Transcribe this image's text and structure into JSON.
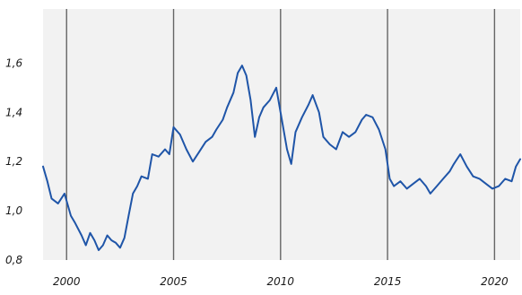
{
  "chart_data": {
    "type": "line",
    "title": "",
    "xlabel": "",
    "ylabel": "",
    "grid": "vertical lines at year ticks",
    "xlim": [
      1998.9,
      2021.2
    ],
    "ylim": [
      0.8,
      1.82
    ],
    "x_ticks": [
      2000,
      2005,
      2010,
      2015,
      2020
    ],
    "x_tick_labels": [
      "2000",
      "2005",
      "2010",
      "2015",
      "2020"
    ],
    "y_ticks": [
      0.8,
      1.0,
      1.2,
      1.4,
      1.6
    ],
    "y_tick_labels": [
      "0,8",
      "1,0",
      "1,2",
      "1,4",
      "1,6"
    ],
    "colors": {
      "plot_background": "#f2f2f2",
      "grid": "#666666",
      "line": "#1f55a8"
    },
    "series": [
      {
        "x": [
          1998.9,
          1999.1,
          1999.3,
          1999.6,
          1999.9,
          2000.2,
          2000.4,
          2000.7,
          2000.9,
          2001.1,
          2001.3,
          2001.5,
          2001.7,
          2001.9,
          2002.1,
          2002.3,
          2002.5,
          2002.7,
          2002.9,
          2003.1,
          2003.3,
          2003.5,
          2003.8,
          2004.0,
          2004.3,
          2004.6,
          2004.8,
          2005.0,
          2005.3,
          2005.6,
          2005.9,
          2006.2,
          2006.5,
          2006.8,
          2007.0,
          2007.3,
          2007.5,
          2007.8,
          2008.0,
          2008.2,
          2008.4,
          2008.6,
          2008.8,
          2009.0,
          2009.2,
          2009.5,
          2009.8,
          2010.0,
          2010.3,
          2010.5,
          2010.7,
          2011.0,
          2011.3,
          2011.5,
          2011.8,
          2012.0,
          2012.3,
          2012.6,
          2012.9,
          2013.2,
          2013.5,
          2013.8,
          2014.0,
          2014.3,
          2014.6,
          2014.9,
          2015.1,
          2015.3,
          2015.6,
          2015.9,
          2016.2,
          2016.5,
          2016.8,
          2017.0,
          2017.3,
          2017.6,
          2017.9,
          2018.1,
          2018.4,
          2018.7,
          2019.0,
          2019.3,
          2019.6,
          2019.9,
          2020.2,
          2020.5,
          2020.8,
          2021.0,
          2021.2
        ],
        "y": [
          1.18,
          1.12,
          1.05,
          1.03,
          1.07,
          0.98,
          0.95,
          0.9,
          0.86,
          0.91,
          0.88,
          0.84,
          0.86,
          0.9,
          0.88,
          0.87,
          0.85,
          0.89,
          0.98,
          1.07,
          1.1,
          1.14,
          1.13,
          1.23,
          1.22,
          1.25,
          1.23,
          1.34,
          1.31,
          1.25,
          1.2,
          1.24,
          1.28,
          1.3,
          1.33,
          1.37,
          1.42,
          1.48,
          1.56,
          1.59,
          1.55,
          1.45,
          1.3,
          1.38,
          1.42,
          1.45,
          1.5,
          1.4,
          1.25,
          1.19,
          1.32,
          1.38,
          1.43,
          1.47,
          1.4,
          1.3,
          1.27,
          1.25,
          1.32,
          1.3,
          1.32,
          1.37,
          1.39,
          1.38,
          1.33,
          1.25,
          1.13,
          1.1,
          1.12,
          1.09,
          1.11,
          1.13,
          1.1,
          1.07,
          1.1,
          1.13,
          1.16,
          1.19,
          1.23,
          1.18,
          1.14,
          1.13,
          1.11,
          1.09,
          1.1,
          1.13,
          1.12,
          1.18,
          1.21
        ]
      }
    ]
  }
}
